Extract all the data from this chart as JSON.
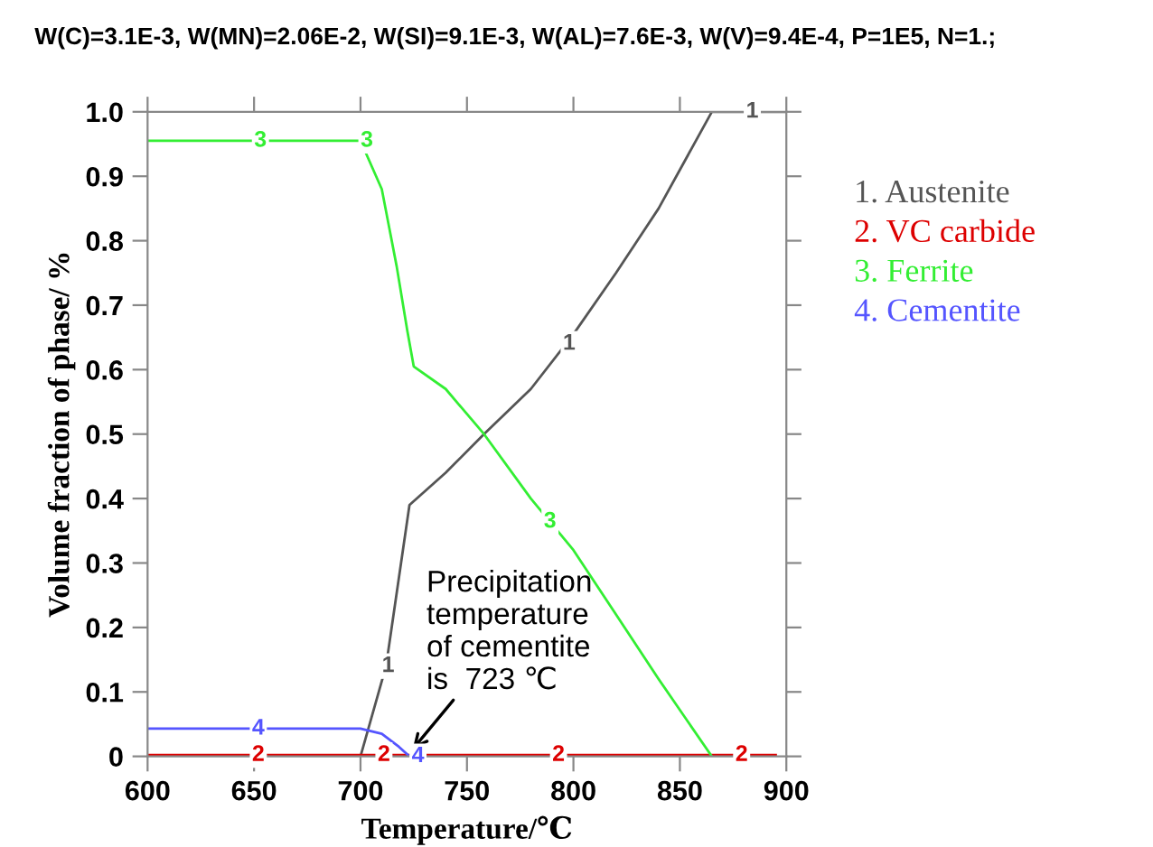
{
  "chart_data": {
    "type": "line",
    "title": "W(C)=3.1E-3, W(MN)=2.06E-2, W(SI)=9.1E-3, W(AL)=7.6E-3, W(V)=9.4E-4, P=1E5, N=1.;",
    "xlabel": "Temperature/℃",
    "ylabel": "Volume fraction of phase/ %",
    "series": [
      {
        "name": "1. Austenite",
        "color": "#555555",
        "x": [
          600,
          700,
          712,
          723,
          740,
          758,
          780,
          800,
          820,
          840,
          865,
          900
        ],
        "values": [
          0,
          0,
          0.14,
          0.39,
          0.44,
          0.5,
          0.57,
          0.655,
          0.75,
          0.85,
          1.0,
          1.0
        ]
      },
      {
        "name": "2. VC carbide",
        "color": "#dd0000",
        "x": [
          600,
          895
        ],
        "values": [
          0.002,
          0.002
        ]
      },
      {
        "name": "3. Ferrite",
        "color": "#33ee33",
        "x": [
          600,
          700,
          710,
          717,
          722,
          725,
          740,
          758,
          780,
          800,
          820,
          840,
          865
        ],
        "values": [
          0.955,
          0.955,
          0.88,
          0.76,
          0.66,
          0.605,
          0.57,
          0.5,
          0.4,
          0.32,
          0.22,
          0.12,
          0.0
        ]
      },
      {
        "name": "4. Cementite",
        "color": "#5555ff",
        "x": [
          600,
          700,
          710,
          718,
          723
        ],
        "values": [
          0.043,
          0.043,
          0.035,
          0.015,
          0.0
        ]
      }
    ],
    "annotations": [
      {
        "text": "1",
        "x": 713,
        "y": 0.14
      },
      {
        "text": "1",
        "x": 798,
        "y": 0.64
      },
      {
        "text": "1",
        "x": 884,
        "y": 1.0
      },
      {
        "text": "2",
        "x": 652,
        "y": 0.002
      },
      {
        "text": "2",
        "x": 711,
        "y": 0.002
      },
      {
        "text": "2",
        "x": 793,
        "y": 0.002
      },
      {
        "text": "2",
        "x": 879,
        "y": 0.002
      },
      {
        "text": "3",
        "x": 653,
        "y": 0.955
      },
      {
        "text": "3",
        "x": 703,
        "y": 0.955
      },
      {
        "text": "3",
        "x": 789,
        "y": 0.364
      },
      {
        "text": "4",
        "x": 652,
        "y": 0.043
      },
      {
        "text": "4",
        "x": 727,
        "y": 0.0
      },
      {
        "text": "Precipitation\ntemperature\nof cementite\nis  723 ℃",
        "x": 723,
        "y": 0.005
      }
    ],
    "xlim": [
      600,
      900
    ],
    "ylim": [
      0,
      1.0
    ],
    "xticks": [
      600,
      650,
      700,
      750,
      800,
      850,
      900
    ],
    "yticks": [
      {
        "value": 0,
        "label": "0"
      },
      0.1,
      0.2,
      0.3,
      0.4,
      0.5,
      0.6,
      0.7,
      0.8,
      0.9,
      {
        "value": 1.0,
        "label": "1.0"
      }
    ],
    "legend": "right",
    "grid": false,
    "marker": "none",
    "line_style": "solid"
  }
}
